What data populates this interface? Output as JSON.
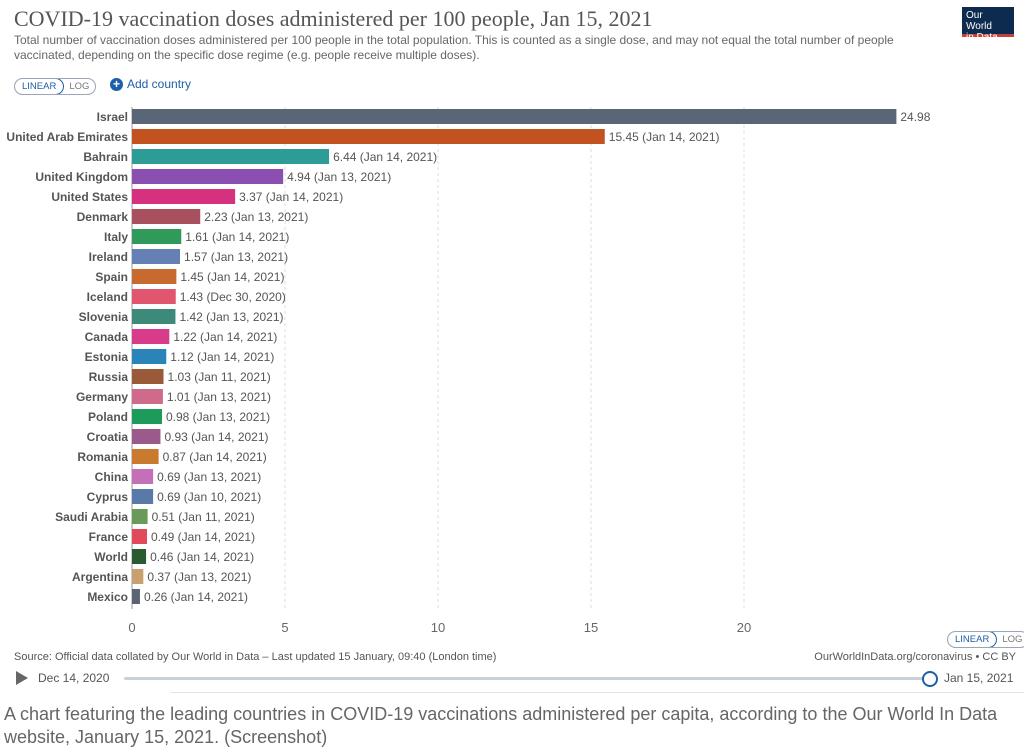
{
  "header": {
    "title": "COVID-19 vaccination doses administered per 100 people, Jan 15, 2021",
    "subtitle": "Total number of vaccination doses administered per 100 people in the total population. This is counted as a single dose, and may not equal the total number of people vaccinated, depending on the specific dose regime (e.g. people receive multiple doses).",
    "logo_line1": "Our World",
    "logo_line2": "in Data"
  },
  "controls": {
    "linear_label": "LINEAR",
    "log_label": "LOG",
    "add_country_label": "Add country"
  },
  "footer": {
    "source": "Source: Official data collated by Our World in Data – Last updated 15 January, 09:40 (London time)",
    "license": "OurWorldInData.org/coronavirus • CC BY"
  },
  "timeline": {
    "start_date": "Dec 14, 2020",
    "end_date": "Jan 15, 2021"
  },
  "caption": "A chart featuring the leading countries in COVID-19 vaccinations administered per capita, according to the Our World In Data website, January 15, 2021. (Screenshot)",
  "colors": {
    "accent": "#1d5fa8",
    "grid": "#dddddd"
  },
  "chart_data": {
    "type": "bar",
    "orientation": "horizontal",
    "title": "COVID-19 vaccination doses administered per 100 people, Jan 15, 2021",
    "xlabel": "",
    "ylabel": "",
    "xlim": [
      0,
      25
    ],
    "xticks": [
      0,
      5,
      10,
      15,
      20
    ],
    "grid": true,
    "categories": [
      "Israel",
      "United Arab Emirates",
      "Bahrain",
      "United Kingdom",
      "United States",
      "Denmark",
      "Italy",
      "Ireland",
      "Spain",
      "Iceland",
      "Slovenia",
      "Canada",
      "Estonia",
      "Russia",
      "Germany",
      "Poland",
      "Croatia",
      "Romania",
      "China",
      "Cyprus",
      "Saudi Arabia",
      "France",
      "World",
      "Argentina",
      "Mexico"
    ],
    "values": [
      24.98,
      15.45,
      6.44,
      4.94,
      3.37,
      2.23,
      1.61,
      1.57,
      1.45,
      1.43,
      1.42,
      1.22,
      1.12,
      1.03,
      1.01,
      0.98,
      0.93,
      0.87,
      0.69,
      0.69,
      0.51,
      0.49,
      0.46,
      0.37,
      0.26
    ],
    "labels": [
      "24.98",
      "15.45 (Jan 14, 2021)",
      "6.44 (Jan 14, 2021)",
      "4.94 (Jan 13, 2021)",
      "3.37 (Jan 14, 2021)",
      "2.23 (Jan 13, 2021)",
      "1.61 (Jan 14, 2021)",
      "1.57 (Jan 13, 2021)",
      "1.45 (Jan 14, 2021)",
      "1.43 (Dec 30, 2020)",
      "1.42 (Jan 13, 2021)",
      "1.22 (Jan 14, 2021)",
      "1.12 (Jan 14, 2021)",
      "1.03 (Jan 11, 2021)",
      "1.01 (Jan 13, 2021)",
      "0.98 (Jan 13, 2021)",
      "0.93 (Jan 14, 2021)",
      "0.87 (Jan 14, 2021)",
      "0.69 (Jan 13, 2021)",
      "0.69 (Jan 10, 2021)",
      "0.51 (Jan 11, 2021)",
      "0.49 (Jan 14, 2021)",
      "0.46 (Jan 14, 2021)",
      "0.37 (Jan 13, 2021)",
      "0.26 (Jan 14, 2021)"
    ],
    "colors": [
      "#5b6578",
      "#c2521f",
      "#2d9c96",
      "#8a4fb0",
      "#d6317f",
      "#a8505e",
      "#2f9a5a",
      "#6480b4",
      "#c66a2f",
      "#e0566e",
      "#3e8a7a",
      "#d83b8a",
      "#2a84b8",
      "#9a5a3a",
      "#d06a8a",
      "#1e9a5a",
      "#9a5a8a",
      "#c97a2f",
      "#c470b8",
      "#5a78a8",
      "#6a9a5a",
      "#e04a5a",
      "#2a5a30",
      "#c9a070",
      "#5a6474"
    ]
  }
}
